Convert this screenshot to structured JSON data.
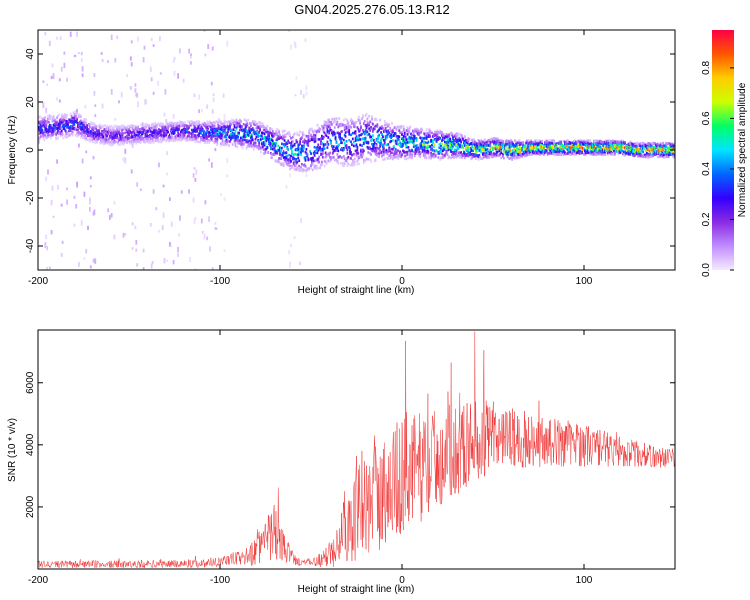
{
  "title": "GN04.2025.276.05.13.R12",
  "chart_data": [
    {
      "type": "heatmap",
      "panel": "top",
      "xlabel": "Height of straight line (km)",
      "ylabel": "Frequency (Hz)",
      "xlim": [
        -200,
        150
      ],
      "ylim": [
        -50,
        50
      ],
      "xticks": [
        -200,
        -100,
        0,
        100
      ],
      "yticks": [
        -40,
        -20,
        0,
        20,
        40
      ],
      "colorbar": {
        "label": "Normalized spectral amplitude",
        "range": [
          0,
          0.95
        ],
        "ticks": [
          "0.0",
          "0.2",
          "0.4",
          "0.6",
          "0.8"
        ],
        "colormap": "rainbow",
        "colors": [
          "#f4eaff",
          "#c08cff",
          "#8a2be2",
          "#3300ff",
          "#0066ff",
          "#00e5ff",
          "#00ff66",
          "#ccff00",
          "#ffcc00",
          "#ff5500",
          "#ff0044"
        ]
      },
      "noise_regions": [
        {
          "x_range": [
            -200,
            -100
          ],
          "freq_range": [
            -50,
            50
          ],
          "level": 0.05
        },
        {
          "x_range": [
            -100,
            -95
          ],
          "freq_range": [
            -50,
            50
          ],
          "level": 0.02
        },
        {
          "x_range": [
            -66,
            -52
          ],
          "freq_range": [
            -50,
            50
          ],
          "level": 0.02
        }
      ],
      "ridge": {
        "name": "dominant frequency",
        "x": [
          -200,
          -185,
          -180,
          -170,
          -160,
          -140,
          -120,
          -100,
          -90,
          -80,
          -70,
          -60,
          -50,
          -40,
          -30,
          -20,
          -10,
          0,
          10,
          20,
          30,
          40,
          50,
          60,
          70,
          80,
          90,
          100,
          110,
          120,
          130,
          140,
          150
        ],
        "freq": [
          9,
          10,
          11,
          7,
          6,
          7,
          8,
          7,
          7,
          6,
          2,
          -1,
          0,
          4,
          3,
          5,
          4,
          3,
          3,
          2,
          2,
          0,
          1,
          0,
          1,
          1,
          1,
          1,
          1,
          1,
          0,
          0,
          0
        ],
        "width": [
          5,
          5,
          5,
          4,
          4,
          4,
          4,
          5,
          6,
          6,
          7,
          8,
          9,
          10,
          10,
          10,
          8,
          7,
          6,
          6,
          5,
          4,
          4,
          4,
          3,
          3,
          3,
          3,
          3,
          3,
          3,
          3,
          3
        ],
        "peak_amplitude": [
          0.35,
          0.35,
          0.4,
          0.3,
          0.3,
          0.3,
          0.35,
          0.45,
          0.5,
          0.5,
          0.5,
          0.5,
          0.45,
          0.45,
          0.45,
          0.45,
          0.5,
          0.55,
          0.6,
          0.65,
          0.65,
          0.7,
          0.75,
          0.8,
          0.8,
          0.8,
          0.85,
          0.85,
          0.85,
          0.85,
          0.85,
          0.85,
          0.85
        ]
      }
    },
    {
      "type": "line",
      "panel": "bottom",
      "xlabel": "Height of straight line (km)",
      "ylabel": "SNR (10 * v/v)",
      "xlim": [
        -200,
        150
      ],
      "ylim": [
        0,
        7700
      ],
      "xticks": [
        -200,
        -100,
        0,
        100
      ],
      "yticks": [
        2000,
        4000,
        6000
      ],
      "series": [
        {
          "name": "SNR",
          "color": "#ee3333",
          "envelope_x": [
            -200,
            -150,
            -110,
            -95,
            -85,
            -80,
            -75,
            -70,
            -67,
            -64,
            -58,
            -50,
            -42,
            -38,
            -35,
            -30,
            -20,
            -10,
            0,
            10,
            20,
            30,
            40,
            50,
            60,
            80,
            100,
            120,
            140,
            150
          ],
          "envelope_mean": [
            150,
            150,
            180,
            300,
            400,
            600,
            900,
            1200,
            900,
            600,
            250,
            200,
            350,
            700,
            1200,
            1500,
            2000,
            2500,
            3000,
            3300,
            3600,
            3900,
            4100,
            4200,
            4200,
            4100,
            4000,
            3800,
            3600,
            3600
          ],
          "envelope_amp": [
            120,
            120,
            140,
            200,
            300,
            500,
            700,
            1000,
            700,
            400,
            150,
            120,
            300,
            700,
            1000,
            1300,
            1700,
            1900,
            1900,
            1800,
            1600,
            1500,
            1400,
            1200,
            1000,
            800,
            700,
            500,
            350,
            300
          ],
          "peaks": [
            {
              "x": 2,
              "y": 7350
            },
            {
              "x": 40,
              "y": 7650
            },
            {
              "x": 27,
              "y": 6650
            },
            {
              "x": -68,
              "y": 2620
            },
            {
              "x": 45,
              "y": 7050
            }
          ]
        }
      ]
    }
  ]
}
